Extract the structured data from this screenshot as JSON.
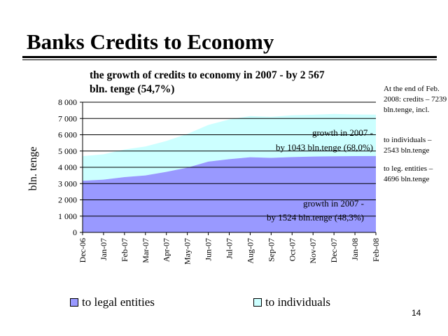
{
  "slide": {
    "title": "Banks Credits to Economy",
    "page_number": "14"
  },
  "notes": {
    "line1": "At the end of Feb. 2008: credits – 7239 bln.tenge, incl.",
    "line2": "to individuals – 2543 bln.tenge",
    "line3": "to leg. entities – 4696 bln.tenge"
  },
  "chart_data": {
    "type": "area",
    "stacked": true,
    "title": "the growth of credits to economy in 2007 - by 2 567 bln. tenge (54,7%)",
    "xlabel": "",
    "ylabel": "bln. tenge",
    "ylim": [
      0,
      8000
    ],
    "yticks": [
      "0",
      "1 000",
      "2 000",
      "3 000",
      "4 000",
      "5 000",
      "6 000",
      "7 000",
      "8 000"
    ],
    "categories": [
      "Dec-06",
      "Jan-07",
      "Feb-07",
      "Mar-07",
      "Apr-07",
      "May-07",
      "Jun-07",
      "Jul-07",
      "Aug-07",
      "Sep-07",
      "Oct-07",
      "Nov-07",
      "Dec-07",
      "Jan-08",
      "Feb-08"
    ],
    "series": [
      {
        "name": "to legal entities",
        "color": "#9999ff",
        "values": [
          3170,
          3240,
          3400,
          3500,
          3720,
          3980,
          4350,
          4500,
          4620,
          4580,
          4630,
          4660,
          4680,
          4690,
          4696
        ]
      },
      {
        "name": "to individuals",
        "color": "#ccffff",
        "values": [
          1520,
          1560,
          1690,
          1780,
          1900,
          2070,
          2250,
          2440,
          2530,
          2520,
          2570,
          2570,
          2600,
          2560,
          2543
        ]
      }
    ],
    "grid": true,
    "legend_position": "bottom",
    "annotations": [
      "growth in 2007 - by 1043 bln.tenge (68,0%)",
      "growth in 2007 - by 1524 bln.tenge (48,3%)"
    ]
  }
}
